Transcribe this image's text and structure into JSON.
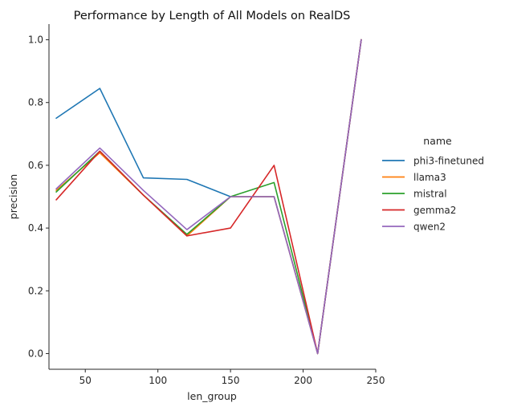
{
  "chart_data": {
    "type": "line",
    "title": "Performance by Length of All Models on RealDS",
    "xlabel": "len_group",
    "ylabel": "precision",
    "xlim": [
      25,
      250
    ],
    "ylim": [
      -0.05,
      1.05
    ],
    "xticks": [
      50,
      100,
      150,
      200,
      250
    ],
    "yticks": [
      0.0,
      0.2,
      0.4,
      0.6,
      0.8,
      1.0
    ],
    "xtick_labels": [
      "50",
      "100",
      "150",
      "200",
      "250"
    ],
    "ytick_labels": [
      "0.0",
      "0.2",
      "0.4",
      "0.6",
      "0.8",
      "1.0"
    ],
    "grid": false,
    "legend_title": "name",
    "legend_position": "right",
    "series": [
      {
        "name": "phi3-finetuned",
        "color": "#1f77b4",
        "x": [
          30,
          60,
          90,
          120,
          150,
          180,
          210,
          240
        ],
        "y": [
          0.75,
          0.845,
          0.56,
          0.555,
          0.5,
          0.5,
          0.0,
          1.0
        ]
      },
      {
        "name": "llama3",
        "color": "#ff7f0e",
        "x": [
          30,
          60,
          90,
          120,
          150,
          180,
          210,
          240
        ],
        "y": [
          0.52,
          0.64,
          0.505,
          0.375,
          0.5,
          0.5,
          0.0,
          1.0
        ]
      },
      {
        "name": "mistral",
        "color": "#2ca02c",
        "x": [
          30,
          60,
          90,
          120,
          150,
          180,
          210,
          240
        ],
        "y": [
          0.515,
          0.645,
          0.505,
          0.38,
          0.5,
          0.545,
          0.0,
          1.0
        ]
      },
      {
        "name": "gemma2",
        "color": "#d62728",
        "x": [
          30,
          60,
          90,
          120,
          150,
          180,
          210,
          240
        ],
        "y": [
          0.49,
          0.645,
          0.505,
          0.375,
          0.4,
          0.6,
          0.0,
          1.0
        ]
      },
      {
        "name": "qwen2",
        "color": "#9467bd",
        "x": [
          30,
          60,
          90,
          120,
          150,
          180,
          210,
          240
        ],
        "y": [
          0.525,
          0.655,
          0.52,
          0.395,
          0.5,
          0.5,
          0.0,
          1.0
        ]
      }
    ]
  }
}
